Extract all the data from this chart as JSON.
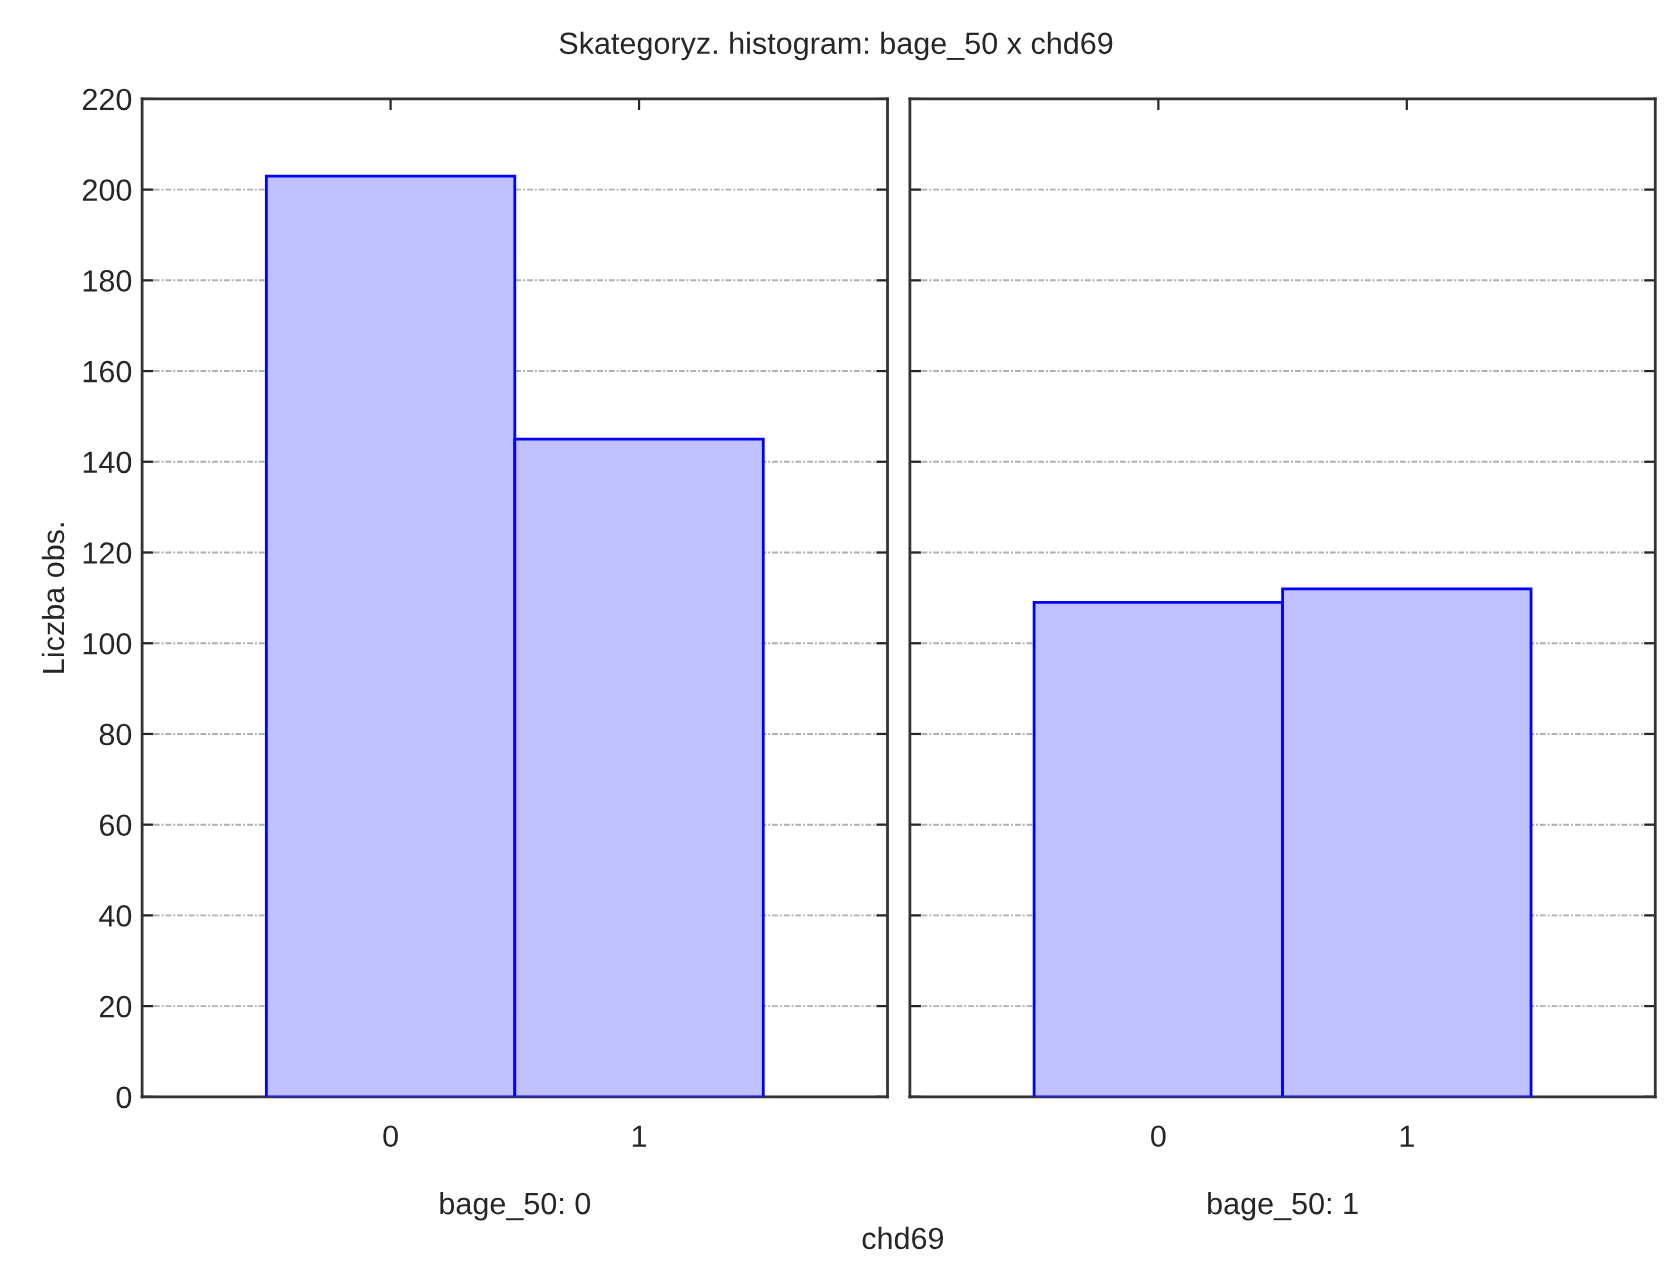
{
  "chart_data": [
    {
      "type": "bar",
      "title": "Skategoryz. histogram: bage_50 x chd69",
      "xlabel": "bage_50: 0",
      "ylabel": "Liczba obs.",
      "categories": [
        "0",
        "1"
      ],
      "values": [
        203,
        145
      ],
      "color": "#c0c0ff",
      "ylim": [
        0,
        220
      ],
      "yticks": [
        0,
        20,
        40,
        60,
        80,
        100,
        120,
        140,
        160,
        180,
        200,
        220
      ],
      "grid": "y"
    },
    {
      "type": "bar",
      "xlabel": "bage_50: 1",
      "categories": [
        "0",
        "1"
      ],
      "values": [
        109,
        112
      ],
      "color": "#c0c0ff",
      "ylim": [
        0,
        220
      ],
      "yticks": [
        0,
        20,
        40,
        60,
        80,
        100,
        120,
        140,
        160,
        180,
        200,
        220
      ],
      "grid": "y",
      "tick_labels": "x",
      "annotations": [
        "chd69"
      ]
    }
  ]
}
